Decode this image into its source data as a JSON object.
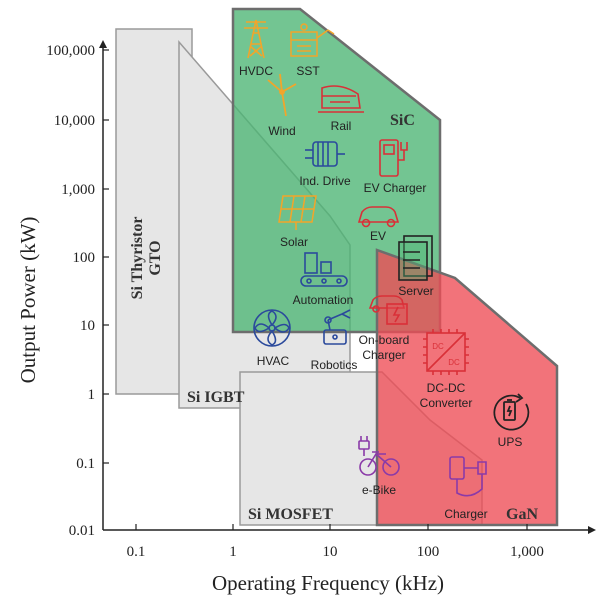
{
  "axes": {
    "x_title": "Operating Frequency (kHz)",
    "y_title": "Output Power (kW)",
    "x_ticks": [
      "0.1",
      "1",
      "10",
      "100",
      "1,000"
    ],
    "y_ticks": [
      "100,000",
      "10,000",
      "1,000",
      "100",
      "10",
      "1",
      "0.1",
      "0.01"
    ]
  },
  "regions": {
    "thyristor_line1": "Si Thyristor",
    "thyristor_line2": "GTO",
    "igbt": "Si IGBT",
    "mosfet": "Si MOSFET",
    "sic": "SiC",
    "gan": "GaN"
  },
  "colors": {
    "silicon_fill": "#e6e6e6",
    "silicon_edge": "#9a9a9a",
    "sic_fill": "#4cb573",
    "gan_fill": "#ee4c55",
    "orange_icon": "#f2a52a",
    "red_icon": "#d93038",
    "blue_icon": "#2b4a9c",
    "purple_icon": "#8a3aa8",
    "black_icon": "#222222"
  },
  "applications": {
    "hvdc": "HVDC",
    "sst": "SST",
    "wind": "Wind",
    "rail": "Rail",
    "ind_drive": "Ind. Drive",
    "ev_charger": "EV Charger",
    "solar": "Solar",
    "ev": "EV",
    "server": "Server",
    "automation": "Automation",
    "onboard_line1": "On-board",
    "onboard_line2": "Charger",
    "hvac": "HVAC",
    "robotics": "Robotics",
    "dcdc_line1": "DC-DC",
    "dcdc_line2": "Converter",
    "dcdc_icon_top": "DC",
    "dcdc_icon_bottom": "DC",
    "ups": "UPS",
    "ebike": "e-Bike",
    "charger": "Charger"
  },
  "chart_data": {
    "type": "area",
    "xlabel": "Operating Frequency (kHz)",
    "ylabel": "Output Power (kW)",
    "x_scale": "log",
    "y_scale": "log",
    "xlim": [
      0.03,
      3000
    ],
    "ylim": [
      0.01,
      100000
    ],
    "grid": false,
    "series": [
      {
        "name": "Si Thyristor GTO",
        "polygon_x": [
          0.06,
          0.4,
          0.4,
          0.06
        ],
        "polygon_y": [
          1,
          1,
          200000,
          200000
        ]
      },
      {
        "name": "Si IGBT",
        "polygon_x": [
          0.3,
          17,
          17,
          10,
          0.3
        ],
        "polygon_y": [
          0.6,
          0.6,
          80,
          200,
          70000
        ]
      },
      {
        "name": "Si MOSFET",
        "polygon_x": [
          1.2,
          400,
          400,
          100,
          20,
          1.2
        ],
        "polygon_y": [
          0.012,
          0.012,
          0.4,
          3,
          10,
          1
        ]
      },
      {
        "name": "SiC",
        "polygon_x": [
          1,
          150,
          150,
          7,
          1
        ],
        "polygon_y": [
          8,
          8,
          7000,
          500000,
          500000
        ]
      },
      {
        "name": "GaN",
        "polygon_x": [
          32,
          2200,
          2200,
          100,
          32
        ],
        "polygon_y": [
          0.012,
          0.012,
          3,
          80,
          120
        ]
      }
    ]
  }
}
